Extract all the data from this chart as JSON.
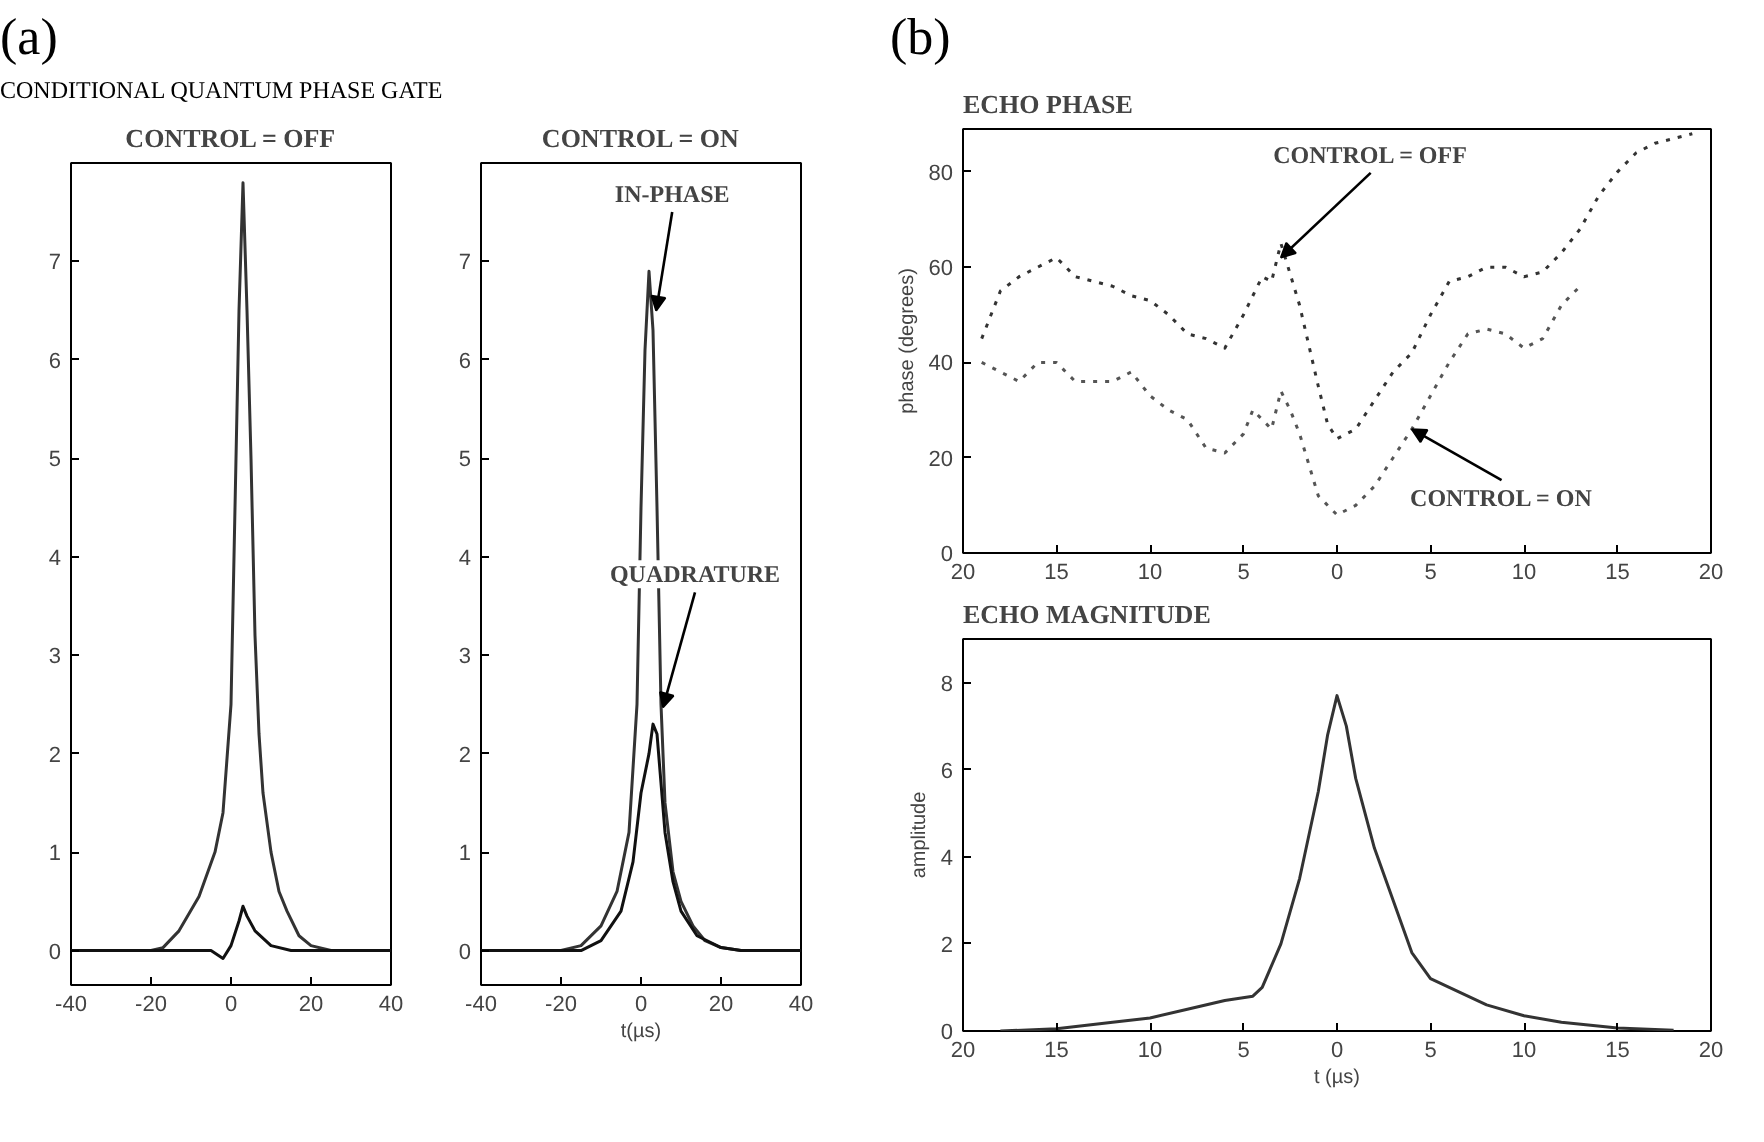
{
  "chart_data": [
    {
      "type": "line",
      "title": "CONTROL = OFF",
      "annotations": [
        "(a)",
        "CONDITIONAL QUANTUM PHASE GATE"
      ],
      "xlim": [
        -40,
        40
      ],
      "ylim": [
        -0.35,
        8
      ],
      "xticks": [
        -40,
        -20,
        0,
        20,
        40
      ],
      "yticks": [
        0,
        1,
        2,
        3,
        4,
        5,
        6,
        7
      ],
      "grid": false,
      "line_style": "solid",
      "marker": "none",
      "series": [
        {
          "color": "#333333",
          "x": [
            -40,
            -20,
            -17,
            -13,
            -8,
            -4,
            -2,
            0,
            1,
            2,
            3,
            4,
            5,
            6,
            7,
            8,
            10,
            12,
            14,
            17,
            20,
            25,
            40
          ],
          "values": [
            0,
            0,
            0.03,
            0.2,
            0.55,
            1.0,
            1.4,
            2.5,
            4.5,
            6.5,
            7.8,
            6.5,
            5,
            3.2,
            2.2,
            1.6,
            1.0,
            0.6,
            0.4,
            0.15,
            0.05,
            0,
            0
          ]
        },
        {
          "color": "#111111",
          "x": [
            -40,
            -10,
            -5,
            -2,
            0,
            2,
            3,
            4,
            6,
            10,
            15,
            40
          ],
          "values": [
            0,
            0,
            0,
            -0.08,
            0.05,
            0.3,
            0.45,
            0.35,
            0.2,
            0.05,
            0,
            0
          ]
        }
      ]
    },
    {
      "type": "line",
      "title": "CONTROL = ON",
      "xlabel": "t(µs)",
      "xlim": [
        -40,
        40
      ],
      "ylim": [
        -0.35,
        8
      ],
      "xticks": [
        -40,
        -20,
        0,
        20,
        40
      ],
      "yticks": [
        0,
        1,
        2,
        3,
        4,
        5,
        6,
        7
      ],
      "grid": false,
      "line_style": "solid",
      "marker": "none",
      "annotations": [
        {
          "text": "IN-PHASE",
          "x": 3.8,
          "y": 6.5
        },
        {
          "text": "QUADRATURE",
          "x": 5.5,
          "y": 2.47
        }
      ],
      "series": [
        {
          "color": "#333333",
          "x": [
            -40,
            -20,
            -15,
            -10,
            -6,
            -3,
            -1,
            0,
            1,
            2,
            3,
            4,
            5,
            6,
            8,
            10,
            13,
            16,
            20,
            25,
            40
          ],
          "values": [
            0,
            0,
            0.05,
            0.25,
            0.6,
            1.2,
            2.5,
            4.5,
            6.1,
            6.9,
            6.3,
            4.5,
            2.5,
            1.5,
            0.8,
            0.5,
            0.25,
            0.1,
            0.03,
            0,
            0
          ]
        },
        {
          "color": "#111111",
          "x": [
            -40,
            -15,
            -10,
            -5,
            -2,
            0,
            2,
            3,
            4,
            5,
            6,
            8,
            10,
            14,
            20,
            25,
            40
          ],
          "values": [
            0,
            0,
            0.1,
            0.4,
            0.9,
            1.6,
            2.0,
            2.3,
            2.2,
            1.7,
            1.2,
            0.7,
            0.4,
            0.15,
            0.03,
            0,
            0
          ]
        }
      ]
    },
    {
      "type": "line",
      "title": "ECHO PHASE",
      "ylabel": "phase (degrees)",
      "xlim": [
        -20,
        20
      ],
      "ylim": [
        0,
        89
      ],
      "xticks": [
        {
          "value": -20,
          "label": "20"
        },
        {
          "value": -15,
          "label": "15"
        },
        {
          "value": -10,
          "label": "10"
        },
        {
          "value": -5,
          "label": "5"
        },
        0,
        5,
        10,
        15,
        20
      ],
      "yticks": [
        0,
        20,
        40,
        60,
        80
      ],
      "grid": false,
      "line_style": "dotted",
      "marker": "none",
      "annotations": [
        "(b)",
        {
          "text": "CONTROL = OFF",
          "x": -3,
          "y": 62
        },
        {
          "text": "CONTROL = ON",
          "x": 4,
          "y": 26
        }
      ],
      "series": [
        {
          "color": "#333333",
          "x": [
            -19,
            -18,
            -17,
            -16,
            -15,
            -14,
            -13,
            -12,
            -11,
            -10,
            -9,
            -8,
            -7,
            -6,
            -5,
            -4,
            -3.5,
            -3,
            -2,
            -1,
            -0.5,
            0,
            1,
            2,
            3,
            4,
            5,
            6,
            7,
            8,
            9,
            10,
            11,
            12,
            13,
            14,
            15,
            16,
            17,
            18,
            19
          ],
          "values": [
            45,
            55,
            58,
            60,
            62,
            58,
            57,
            56,
            54,
            53,
            50,
            46,
            45,
            43,
            50,
            58,
            57,
            65,
            52,
            35,
            27,
            24,
            26,
            32,
            38,
            42,
            50,
            57,
            58,
            60,
            60,
            58,
            59,
            63,
            68,
            75,
            80,
            84,
            86,
            87,
            88
          ]
        },
        {
          "color": "#555555",
          "x": [
            -19,
            -18,
            -17,
            -16,
            -15,
            -14,
            -13,
            -12,
            -11,
            -10,
            -9,
            -8,
            -7,
            -6,
            -5,
            -4.5,
            -4,
            -3.5,
            -3,
            -2.5,
            -2,
            -1,
            0,
            1,
            2,
            3,
            4,
            5,
            6,
            7,
            8,
            9,
            10,
            11,
            12,
            13
          ],
          "values": [
            40,
            38,
            36,
            40,
            40,
            36,
            36,
            36,
            38,
            33,
            30,
            28,
            22,
            21,
            25,
            30,
            28,
            26,
            34,
            30,
            25,
            12,
            8,
            10,
            14,
            20,
            26,
            33,
            40,
            46,
            47,
            46,
            43,
            45,
            52,
            56
          ]
        }
      ]
    },
    {
      "type": "line",
      "title": "ECHO MAGNITUDE",
      "xlabel": "t (µs)",
      "ylabel": "amplitude",
      "xlim": [
        -20,
        20
      ],
      "ylim": [
        0,
        9
      ],
      "xticks": [
        {
          "value": -20,
          "label": "20"
        },
        {
          "value": -15,
          "label": "15"
        },
        {
          "value": -10,
          "label": "10"
        },
        {
          "value": -5,
          "label": "5"
        },
        0,
        5,
        10,
        15,
        20
      ],
      "yticks": [
        0,
        2,
        4,
        6,
        8
      ],
      "grid": false,
      "line_style": "solid",
      "marker": "none",
      "series": [
        {
          "color": "#333333",
          "x": [
            -18,
            -15,
            -12,
            -10,
            -8,
            -6,
            -4.5,
            -4,
            -3,
            -2,
            -1,
            -0.5,
            0,
            0.5,
            1,
            2,
            3,
            4,
            5,
            6,
            8,
            10,
            12,
            15,
            18
          ],
          "values": [
            0,
            0.05,
            0.2,
            0.3,
            0.5,
            0.7,
            0.8,
            1.0,
            2.0,
            3.5,
            5.5,
            6.8,
            7.7,
            7.0,
            5.8,
            4.2,
            3.0,
            1.8,
            1.2,
            1.0,
            0.6,
            0.35,
            0.2,
            0.07,
            0.02
          ]
        }
      ]
    }
  ]
}
